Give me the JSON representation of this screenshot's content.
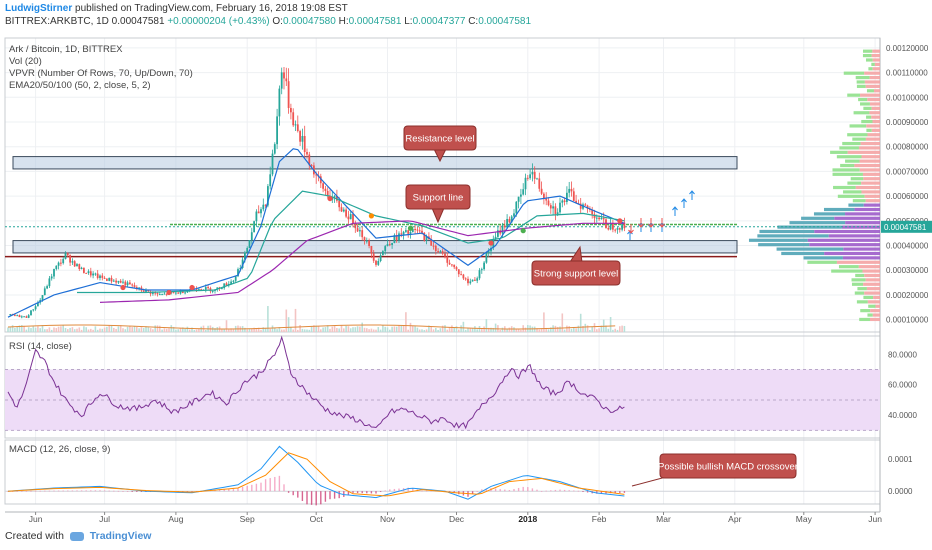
{
  "header": {
    "author": "LudwigStirner",
    "published": " published on TradingView.com, February 16, 2018 19:08 EST",
    "symbol": "BITTREX:ARKBTC, 1D 0.00047581",
    "change": "+0.00000204 (+0.43%)",
    "o_label": "O:",
    "o": "0.00047580",
    "h_label": "H:",
    "h": "0.00047581",
    "l_label": "L:",
    "l": "0.00047377",
    "c_label": "C:",
    "c": "0.00047581"
  },
  "indicators": {
    "title": "Ark / Bitcoin, 1D, BITTREX",
    "vol": "Vol (20)",
    "vpvr": "VPVR (Number Of Rows, 70, Up/Down, 70)",
    "ema": "EMA20/50/100 (50, 2, close, 5, 2)",
    "rsi": "RSI (14, close)",
    "macd": "MACD (12, 26, close, 9)"
  },
  "footer": {
    "created": "Created with",
    "brand": "TradingView"
  },
  "colors": {
    "up": "#26a69a",
    "down": "#ef5350",
    "ema20": "#1e6fd6",
    "ema50": "#26a69a",
    "ema100": "#9c27b0",
    "rsi": "#7b3294",
    "rsi_band": "#eedcf7",
    "macd": "#2196f3",
    "signal": "#ff8c00",
    "annotation_fill": "#c0504d",
    "zone": "#b7cbe0"
  },
  "chart_data": [
    {
      "type": "candlestick",
      "name": "ARKBTC",
      "x_ticks": [
        "Jun",
        "Jul",
        "Aug",
        "Sep",
        "Oct",
        "Nov",
        "Dec",
        "2018",
        "Feb",
        "Mar",
        "Apr",
        "May",
        "Jun"
      ],
      "y_ticks": [
        "0.00120000",
        "0.00110000",
        "0.00100000",
        "0.00090000",
        "0.00080000",
        "0.00070000",
        "0.00060000",
        "0.00050000",
        "0.00040000",
        "0.00030000",
        "0.00020000",
        "0.00010000"
      ],
      "ylim": [
        5e-05,
        0.00124
      ],
      "last_price": "0.00047581",
      "price_path": [
        [
          0,
          0.00012
        ],
        [
          8,
          0.00011
        ],
        [
          14,
          0.00018
        ],
        [
          20,
          0.0003
        ],
        [
          25,
          0.00036
        ],
        [
          32,
          0.0003
        ],
        [
          40,
          0.00027
        ],
        [
          50,
          0.00025
        ],
        [
          58,
          0.00022
        ],
        [
          66,
          0.0002
        ],
        [
          74,
          0.00021
        ],
        [
          82,
          0.00023
        ],
        [
          90,
          0.00022
        ],
        [
          98,
          0.00026
        ],
        [
          103,
          0.00036
        ],
        [
          108,
          0.00052
        ],
        [
          112,
          0.00058
        ],
        [
          116,
          0.00082
        ],
        [
          119,
          0.00113
        ],
        [
          122,
          0.00098
        ],
        [
          125,
          0.00088
        ],
        [
          128,
          0.00082
        ],
        [
          132,
          0.00072
        ],
        [
          136,
          0.00064
        ],
        [
          140,
          0.0006
        ],
        [
          145,
          0.00055
        ],
        [
          150,
          0.0005
        ],
        [
          155,
          0.00043
        ],
        [
          160,
          0.00033
        ],
        [
          165,
          0.00041
        ],
        [
          170,
          0.00044
        ],
        [
          178,
          0.00046
        ],
        [
          185,
          0.0004
        ],
        [
          190,
          0.00035
        ],
        [
          195,
          0.0003
        ],
        [
          200,
          0.00025
        ],
        [
          204,
          0.00027
        ],
        [
          208,
          0.00036
        ],
        [
          213,
          0.00045
        ],
        [
          219,
          0.00052
        ],
        [
          223,
          0.0006
        ],
        [
          227,
          0.00071
        ],
        [
          232,
          0.00062
        ],
        [
          238,
          0.00054
        ],
        [
          244,
          0.00061
        ],
        [
          250,
          0.00056
        ],
        [
          256,
          0.00052
        ],
        [
          260,
          0.00048
        ],
        [
          265,
          0.00048
        ],
        [
          268,
          0.000476
        ]
      ],
      "ema20": [
        [
          0,
          0.00011
        ],
        [
          20,
          0.0002
        ],
        [
          40,
          0.00025
        ],
        [
          60,
          0.00022
        ],
        [
          80,
          0.00022
        ],
        [
          100,
          0.00028
        ],
        [
          110,
          0.00048
        ],
        [
          118,
          0.00074
        ],
        [
          125,
          0.0008
        ],
        [
          135,
          0.00068
        ],
        [
          145,
          0.00058
        ],
        [
          160,
          0.00043
        ],
        [
          180,
          0.00045
        ],
        [
          200,
          0.00032
        ],
        [
          212,
          0.0004
        ],
        [
          225,
          0.00058
        ],
        [
          240,
          0.0006
        ],
        [
          255,
          0.00054
        ],
        [
          268,
          0.00049
        ]
      ],
      "ema50": [
        [
          30,
          0.00021
        ],
        [
          60,
          0.00021
        ],
        [
          90,
          0.00022
        ],
        [
          105,
          0.00027
        ],
        [
          115,
          0.0005
        ],
        [
          128,
          0.00062
        ],
        [
          140,
          0.0006
        ],
        [
          160,
          0.00052
        ],
        [
          180,
          0.00048
        ],
        [
          200,
          0.00041
        ],
        [
          215,
          0.00043
        ],
        [
          230,
          0.00052
        ],
        [
          250,
          0.00053
        ],
        [
          268,
          0.0005
        ]
      ],
      "ema100": [
        [
          40,
          0.00017
        ],
        [
          70,
          0.00018
        ],
        [
          100,
          0.00021
        ],
        [
          115,
          0.0003
        ],
        [
          130,
          0.00042
        ],
        [
          150,
          0.00049
        ],
        [
          175,
          0.0005
        ],
        [
          200,
          0.00044
        ],
        [
          225,
          0.00047
        ],
        [
          250,
          0.00049
        ],
        [
          268,
          0.00049
        ]
      ],
      "annotations": [
        "Resistance level",
        "Support line",
        "Strong support level"
      ],
      "resistance_zone": [
        0.00071,
        0.00076
      ],
      "support_zone": [
        0.00037,
        0.00042
      ],
      "support_line": 0.000485,
      "strong_support_line": 0.000355
    },
    {
      "type": "line",
      "name": "RSI (14, close)",
      "y_ticks": [
        "80.0000",
        "60.0000",
        "40.0000"
      ],
      "ylim": [
        25,
        92
      ],
      "band": [
        30,
        70
      ],
      "values": [
        [
          0,
          55
        ],
        [
          4,
          45
        ],
        [
          8,
          60
        ],
        [
          12,
          82
        ],
        [
          16,
          75
        ],
        [
          20,
          62
        ],
        [
          26,
          48
        ],
        [
          32,
          40
        ],
        [
          40,
          55
        ],
        [
          48,
          46
        ],
        [
          56,
          44
        ],
        [
          64,
          50
        ],
        [
          72,
          42
        ],
        [
          80,
          48
        ],
        [
          88,
          55
        ],
        [
          95,
          48
        ],
        [
          103,
          62
        ],
        [
          108,
          66
        ],
        [
          112,
          72
        ],
        [
          116,
          80
        ],
        [
          119,
          90
        ],
        [
          123,
          68
        ],
        [
          127,
          60
        ],
        [
          132,
          52
        ],
        [
          138,
          44
        ],
        [
          144,
          40
        ],
        [
          150,
          38
        ],
        [
          156,
          34
        ],
        [
          160,
          30
        ],
        [
          166,
          42
        ],
        [
          172,
          44
        ],
        [
          178,
          40
        ],
        [
          184,
          36
        ],
        [
          190,
          38
        ],
        [
          196,
          32
        ],
        [
          200,
          34
        ],
        [
          206,
          46
        ],
        [
          212,
          56
        ],
        [
          218,
          70
        ],
        [
          222,
          66
        ],
        [
          227,
          72
        ],
        [
          232,
          58
        ],
        [
          238,
          54
        ],
        [
          244,
          62
        ],
        [
          250,
          54
        ],
        [
          256,
          50
        ],
        [
          260,
          44
        ],
        [
          265,
          43
        ],
        [
          268,
          46
        ]
      ]
    },
    {
      "type": "line",
      "name": "MACD (12, 26, close, 9)",
      "y_ticks": [
        "0.0001",
        "0.0000"
      ],
      "ylim": [
        -4e-05,
        0.00016
      ],
      "macd_values": [
        [
          0,
          0.0
        ],
        [
          20,
          1e-05
        ],
        [
          40,
          1.5e-05
        ],
        [
          60,
          0.0
        ],
        [
          80,
          -5e-06
        ],
        [
          100,
          2e-05
        ],
        [
          110,
          7e-05
        ],
        [
          118,
          0.00014
        ],
        [
          126,
          9e-05
        ],
        [
          135,
          2e-05
        ],
        [
          145,
          -1e-05
        ],
        [
          160,
          -2e-05
        ],
        [
          175,
          1e-05
        ],
        [
          190,
          0.0
        ],
        [
          200,
          -2.5e-05
        ],
        [
          210,
          1.5e-05
        ],
        [
          225,
          5e-05
        ],
        [
          240,
          3e-05
        ],
        [
          255,
          -5e-06
        ],
        [
          268,
          -1.5e-05
        ]
      ],
      "signal_values": [
        [
          0,
          0.0
        ],
        [
          20,
          8e-06
        ],
        [
          40,
          1.2e-05
        ],
        [
          60,
          2e-06
        ],
        [
          80,
          -3e-06
        ],
        [
          100,
          1e-05
        ],
        [
          112,
          5e-05
        ],
        [
          122,
          0.00012
        ],
        [
          130,
          0.0001
        ],
        [
          140,
          3e-05
        ],
        [
          150,
          -8e-06
        ],
        [
          165,
          -1.5e-05
        ],
        [
          180,
          5e-06
        ],
        [
          195,
          -5e-06
        ],
        [
          205,
          -1e-05
        ],
        [
          218,
          3e-05
        ],
        [
          232,
          4e-05
        ],
        [
          248,
          1e-05
        ],
        [
          268,
          -1e-05
        ]
      ],
      "annotation": "Possible bullish MACD crossover"
    }
  ]
}
